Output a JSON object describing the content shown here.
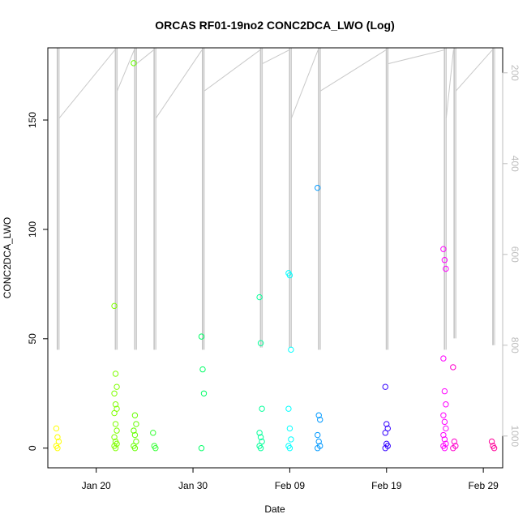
{
  "chart_data": {
    "type": "scatter",
    "title": "ORCAS RF01-19no2 CONC2DCA_LWO (Log)",
    "xlabel": "Date",
    "ylabel": "CONC2DCA_LWO",
    "x_ticks": [
      "Jan 20",
      "Jan 30",
      "Feb 09",
      "Feb 19",
      "Feb 29"
    ],
    "y_ticks": [
      "0",
      "50",
      "100",
      "150"
    ],
    "y2_ticks": [
      "200",
      "400",
      "600",
      "800",
      "1000"
    ],
    "xlim": [
      "2016-01-15",
      "2016-03-02"
    ],
    "ylim": [
      -9,
      183
    ],
    "y2lim": [
      1070,
      145
    ],
    "y2_reversed": true,
    "grid": false,
    "legend": "none",
    "series": [
      {
        "date": "2016-01-16",
        "color": "#FFFF00",
        "values": [
          9,
          5,
          3,
          1,
          0
        ]
      },
      {
        "date": "2016-01-22",
        "color": "#7FFF00",
        "values": [
          65,
          34,
          28,
          25,
          20,
          18,
          16,
          11,
          8,
          5,
          3,
          2,
          1,
          0
        ]
      },
      {
        "date": "2016-01-24",
        "color": "#66FF00",
        "values": [
          176,
          15,
          11,
          8,
          6,
          3,
          1,
          0
        ]
      },
      {
        "date": "2016-01-26",
        "color": "#33FF33",
        "values": [
          7,
          1,
          0
        ]
      },
      {
        "date": "2016-01-31",
        "color": "#00FF66",
        "values": [
          51,
          36,
          25,
          0
        ]
      },
      {
        "date": "2016-02-06",
        "color": "#00FF99",
        "values": [
          69,
          48,
          18,
          7,
          5,
          3,
          1,
          0
        ]
      },
      {
        "date": "2016-02-09",
        "color": "#00FFFF",
        "values": [
          80,
          79,
          45,
          18,
          9,
          4,
          1,
          0
        ]
      },
      {
        "date": "2016-02-12",
        "color": "#0099FF",
        "values": [
          119,
          15,
          13,
          6,
          3,
          1,
          0
        ]
      },
      {
        "date": "2016-02-19",
        "color": "#3300FF",
        "values": [
          28,
          11,
          9,
          7,
          2,
          1,
          0
        ]
      },
      {
        "date": "2016-02-25",
        "color": "#FF00FF",
        "values": [
          91,
          86,
          82,
          41,
          26,
          20,
          15,
          12,
          9,
          6,
          4,
          2,
          1,
          0
        ]
      },
      {
        "date": "2016-02-26",
        "color": "#FF00CC",
        "values": [
          37,
          3,
          1,
          0
        ]
      },
      {
        "date": "2016-03-01",
        "color": "#FF0099",
        "values": [
          3,
          1,
          0
        ]
      }
    ],
    "pressure_trace": {
      "color": "#c8c8c8",
      "axis": "right",
      "segments": [
        {
          "date": "2016-01-16",
          "min": 145,
          "max": 810
        },
        {
          "date": "2016-01-22",
          "min": 145,
          "max": 810
        },
        {
          "date": "2016-01-24",
          "min": 145,
          "max": 810
        },
        {
          "date": "2016-01-26",
          "min": 145,
          "max": 810
        },
        {
          "date": "2016-01-31",
          "min": 145,
          "max": 810
        },
        {
          "date": "2016-02-06",
          "min": 145,
          "max": 805
        },
        {
          "date": "2016-02-09",
          "min": 145,
          "max": 805
        },
        {
          "date": "2016-02-12",
          "min": 145,
          "max": 810
        },
        {
          "date": "2016-02-19",
          "min": 145,
          "max": 810
        },
        {
          "date": "2016-02-25",
          "min": 145,
          "max": 810
        },
        {
          "date": "2016-02-26",
          "min": 145,
          "max": 785
        },
        {
          "date": "2016-03-01",
          "min": 145,
          "max": 800
        }
      ]
    }
  }
}
